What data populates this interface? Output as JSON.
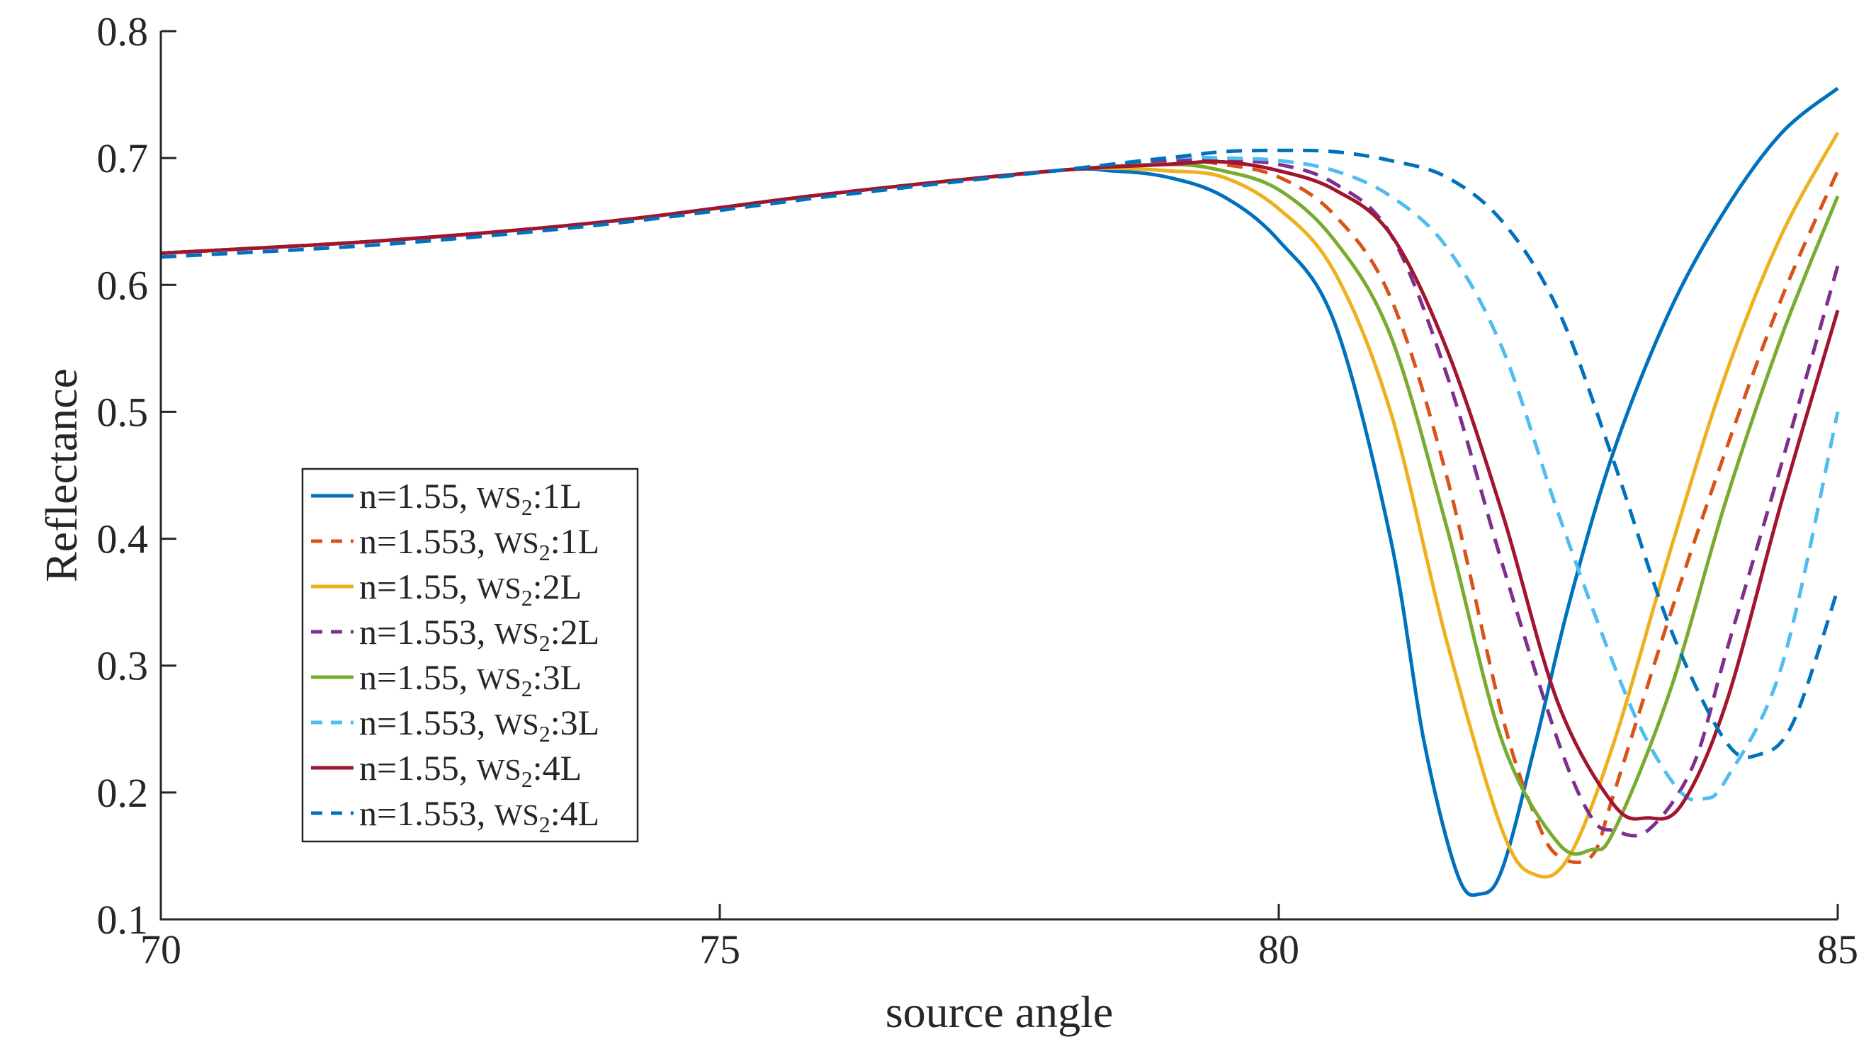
{
  "chart_data": {
    "type": "line",
    "title": "",
    "xlabel": "source angle",
    "ylabel": "Reflectance",
    "xlim": [
      70,
      85
    ],
    "ylim": [
      0.1,
      0.8
    ],
    "xticks": [
      70,
      75,
      80,
      85
    ],
    "yticks": [
      0.1,
      0.2,
      0.3,
      0.4,
      0.5,
      0.6,
      0.7,
      0.8
    ],
    "xtick_labels": [
      "70",
      "75",
      "80",
      "85"
    ],
    "ytick_labels": [
      "0.1",
      "0.2",
      "0.3",
      "0.4",
      "0.5",
      "0.6",
      "0.7",
      "0.8"
    ],
    "grid": false,
    "legend_position": "lower-left",
    "series": [
      {
        "name": "n=1.55, WS2:1L",
        "label_prefix": "n=1.55, ",
        "label_material": "WS",
        "label_sub": "2",
        "label_suffix": ":1L",
        "color": "#0072BD",
        "style": "solid",
        "x": [
          70,
          72,
          74,
          76,
          78,
          78.5,
          79,
          79.5,
          80,
          80.5,
          81,
          81.3,
          81.6,
          81.8,
          82,
          82.3,
          82.6,
          83,
          83.5,
          84,
          84.5,
          85
        ],
        "y": [
          0.625,
          0.635,
          0.65,
          0.672,
          0.69,
          0.69,
          0.685,
          0.67,
          0.635,
          0.57,
          0.4,
          0.24,
          0.135,
          0.12,
          0.14,
          0.24,
          0.35,
          0.47,
          0.58,
          0.66,
          0.72,
          0.755
        ]
      },
      {
        "name": "n=1.553, WS2:1L",
        "label_prefix": "n=1.553, ",
        "label_material": "WS",
        "label_sub": "2",
        "label_suffix": ":1L",
        "color": "#D95319",
        "style": "dashed",
        "x": [
          70,
          72,
          74,
          76,
          78,
          79,
          79.5,
          80,
          80.5,
          81,
          81.5,
          82,
          82.3,
          82.5,
          82.8,
          83,
          83.5,
          84,
          84.5,
          85
        ],
        "y": [
          0.625,
          0.635,
          0.65,
          0.672,
          0.69,
          0.698,
          0.695,
          0.685,
          0.655,
          0.59,
          0.45,
          0.26,
          0.18,
          0.15,
          0.15,
          0.2,
          0.34,
          0.47,
          0.59,
          0.69
        ]
      },
      {
        "name": "n=1.55, WS2:2L",
        "label_prefix": "n=1.55, ",
        "label_material": "WS",
        "label_sub": "2",
        "label_suffix": ":2L",
        "color": "#EDB120",
        "style": "solid",
        "x": [
          70,
          72,
          74,
          76,
          78,
          78.5,
          79,
          79.5,
          80,
          80.5,
          81,
          81.5,
          82,
          82.3,
          82.6,
          83,
          83.5,
          84,
          84.5,
          85
        ],
        "y": [
          0.625,
          0.635,
          0.65,
          0.672,
          0.69,
          0.692,
          0.69,
          0.685,
          0.66,
          0.61,
          0.5,
          0.32,
          0.17,
          0.135,
          0.15,
          0.24,
          0.39,
          0.53,
          0.64,
          0.72
        ]
      },
      {
        "name": "n=1.553, WS2:2L",
        "label_prefix": "n=1.553, ",
        "label_material": "WS",
        "label_sub": "2",
        "label_suffix": ":2L",
        "color": "#7E2F8E",
        "style": "dashed",
        "x": [
          70,
          72,
          74,
          76,
          78,
          79,
          79.5,
          80,
          80.5,
          81,
          81.5,
          82,
          82.5,
          82.8,
          83,
          83.3,
          83.7,
          84,
          84.5,
          85
        ],
        "y": [
          0.625,
          0.635,
          0.65,
          0.672,
          0.69,
          0.698,
          0.698,
          0.695,
          0.68,
          0.64,
          0.53,
          0.38,
          0.24,
          0.18,
          0.17,
          0.17,
          0.22,
          0.31,
          0.46,
          0.615
        ]
      },
      {
        "name": "n=1.55, WS2:3L",
        "label_prefix": "n=1.55, ",
        "label_material": "WS",
        "label_sub": "2",
        "label_suffix": ":3L",
        "color": "#77AC30",
        "style": "solid",
        "x": [
          70,
          72,
          74,
          76,
          78,
          79,
          79.5,
          80,
          80.5,
          81,
          81.5,
          82,
          82.5,
          82.8,
          83,
          83.5,
          84,
          84.5,
          85
        ],
        "y": [
          0.625,
          0.635,
          0.65,
          0.672,
          0.69,
          0.695,
          0.69,
          0.675,
          0.635,
          0.56,
          0.41,
          0.24,
          0.16,
          0.155,
          0.17,
          0.28,
          0.43,
          0.56,
          0.67
        ]
      },
      {
        "name": "n=1.553, WS2:3L",
        "label_prefix": "n=1.553, ",
        "label_material": "WS",
        "label_sub": "2",
        "label_suffix": ":3L",
        "color": "#4DBEEE",
        "style": "dashed",
        "x": [
          70,
          72,
          74,
          76,
          78,
          79,
          79.5,
          80,
          80.5,
          81,
          81.5,
          82,
          82.5,
          83,
          83.3,
          83.6,
          83.8,
          84,
          84.5,
          85
        ],
        "y": [
          0.625,
          0.635,
          0.65,
          0.672,
          0.69,
          0.7,
          0.7,
          0.698,
          0.69,
          0.67,
          0.63,
          0.55,
          0.42,
          0.3,
          0.24,
          0.2,
          0.195,
          0.21,
          0.3,
          0.5
        ]
      },
      {
        "name": "n=1.55, WS2:4L",
        "label_prefix": "n=1.55, ",
        "label_material": "WS",
        "label_sub": "2",
        "label_suffix": ":4L",
        "color": "#A2142F",
        "style": "solid",
        "x": [
          70,
          72,
          74,
          76,
          78,
          79,
          79.5,
          80,
          80.5,
          81,
          81.5,
          82,
          82.5,
          83,
          83.3,
          83.6,
          84,
          84.5,
          85
        ],
        "y": [
          0.625,
          0.635,
          0.65,
          0.672,
          0.69,
          0.695,
          0.697,
          0.69,
          0.675,
          0.64,
          0.55,
          0.42,
          0.27,
          0.19,
          0.18,
          0.19,
          0.27,
          0.43,
          0.58
        ]
      },
      {
        "name": "n=1.553, WS2:4L",
        "label_prefix": "n=1.553, ",
        "label_material": "WS",
        "label_sub": "2",
        "label_suffix": ":4L",
        "color": "#0072BD",
        "style": "dashed",
        "x": [
          70,
          72,
          74,
          76,
          78,
          79,
          79.5,
          80,
          80.5,
          81,
          81.5,
          82,
          82.5,
          83,
          83.5,
          84,
          84.3,
          84.6,
          85
        ],
        "y": [
          0.622,
          0.632,
          0.648,
          0.67,
          0.69,
          0.7,
          0.705,
          0.706,
          0.705,
          0.698,
          0.685,
          0.65,
          0.58,
          0.46,
          0.33,
          0.24,
          0.23,
          0.255,
          0.36
        ]
      }
    ]
  }
}
